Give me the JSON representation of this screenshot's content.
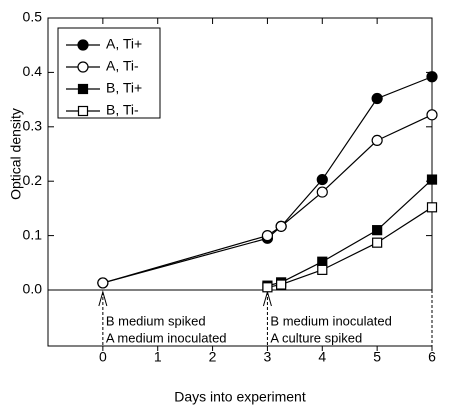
{
  "chart_data": {
    "type": "line",
    "x_label": "Days into experiment",
    "y_label": "Optical density",
    "xlim": [
      -1,
      6
    ],
    "xticks": [
      0,
      1,
      2,
      3,
      4,
      5,
      6
    ],
    "ylim": [
      0,
      0.5
    ],
    "yticks": [
      {
        "value": 0,
        "label": "0.0"
      },
      0.1,
      0.2,
      0.3,
      0.4,
      0.5
    ],
    "legend": "upper left",
    "series": [
      {
        "name": "A, Ti+",
        "color": "#000000",
        "marker": "circle",
        "filled": true,
        "x": [
          0,
          3,
          3.25,
          4,
          5,
          6
        ],
        "values": [
          0.013,
          0.095,
          0.117,
          0.203,
          0.352,
          0.392
        ]
      },
      {
        "name": "A, Ti-",
        "color": "#000000",
        "marker": "circle",
        "filled": false,
        "x": [
          0,
          3,
          3.25,
          4,
          5,
          6
        ],
        "values": [
          0.013,
          0.1,
          0.117,
          0.18,
          0.275,
          0.322
        ]
      },
      {
        "name": "B, Ti+",
        "color": "#000000",
        "marker": "square",
        "filled": true,
        "x": [
          3,
          3.25,
          4,
          5,
          6
        ],
        "values": [
          0.008,
          0.014,
          0.052,
          0.11,
          0.203
        ]
      },
      {
        "name": "B, Ti-",
        "color": "#000000",
        "marker": "square",
        "filled": false,
        "x": [
          3,
          3.25,
          4,
          5,
          6
        ],
        "values": [
          0.005,
          0.01,
          0.037,
          0.087,
          0.152
        ]
      }
    ],
    "annotations": [
      {
        "x": 0,
        "lines": [
          "B medium spiked",
          "A medium inoculated"
        ]
      },
      {
        "x": 3,
        "lines": [
          "B medium inoculated",
          "A culture spiked"
        ]
      }
    ]
  }
}
